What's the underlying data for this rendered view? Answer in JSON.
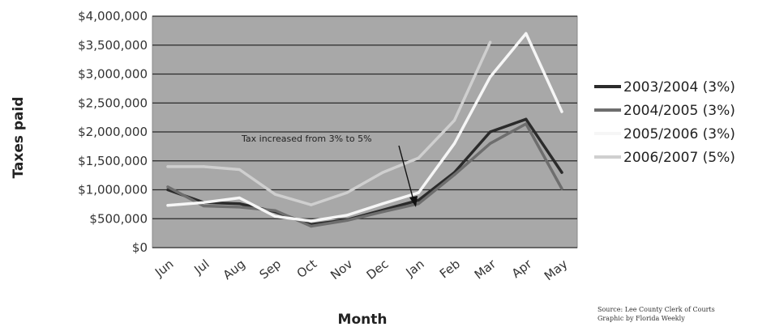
{
  "chart_data": {
    "type": "line",
    "title": "",
    "xlabel": "Month",
    "ylabel": "Taxes paid",
    "categories": [
      "Jun",
      "Jul",
      "Aug",
      "Sep",
      "Oct",
      "Nov",
      "Dec",
      "Jan",
      "Feb",
      "Mar",
      "Apr",
      "May"
    ],
    "ylim": [
      0,
      4000000
    ],
    "yticks": [
      0,
      500000,
      1000000,
      1500000,
      2000000,
      2500000,
      3000000,
      3500000,
      4000000
    ],
    "ytick_labels": [
      "$0",
      "$500,000",
      "$1,000,000",
      "$1,500,000",
      "$2,000,000",
      "$2,500,000",
      "$3,000,000",
      "$3,500,000",
      "$4,000,000"
    ],
    "grid": true,
    "legend_position": "right",
    "plot_background": "#a8a8a8",
    "series": [
      {
        "name": "2003/2004 (3%)",
        "color": "#2b2b2b",
        "values": [
          1000000,
          780000,
          760000,
          620000,
          400000,
          480000,
          650000,
          820000,
          1300000,
          2000000,
          2220000,
          1300000
        ]
      },
      {
        "name": "2004/2005 (3%)",
        "color": "#6e6e6e",
        "values": [
          1050000,
          720000,
          700000,
          640000,
          370000,
          470000,
          620000,
          760000,
          1260000,
          1800000,
          2140000,
          1020000
        ]
      },
      {
        "name": "2005/2006 (3%)",
        "color": "#f6f6f6",
        "values": [
          730000,
          780000,
          860000,
          540000,
          460000,
          560000,
          760000,
          950000,
          1800000,
          2950000,
          3700000,
          2350000
        ]
      },
      {
        "name": "2006/2007 (5%)",
        "color": "#cfcfcf",
        "values": [
          1400000,
          1400000,
          1350000,
          920000,
          740000,
          950000,
          1300000,
          1550000,
          2200000,
          3550000,
          null,
          null
        ]
      }
    ],
    "annotations": [
      {
        "text": "Tax increased from 3% to 5%"
      }
    ],
    "source_lines": [
      "Source: Lee County Clerk of Courts",
      "Graphic by Florida Weekly"
    ]
  }
}
